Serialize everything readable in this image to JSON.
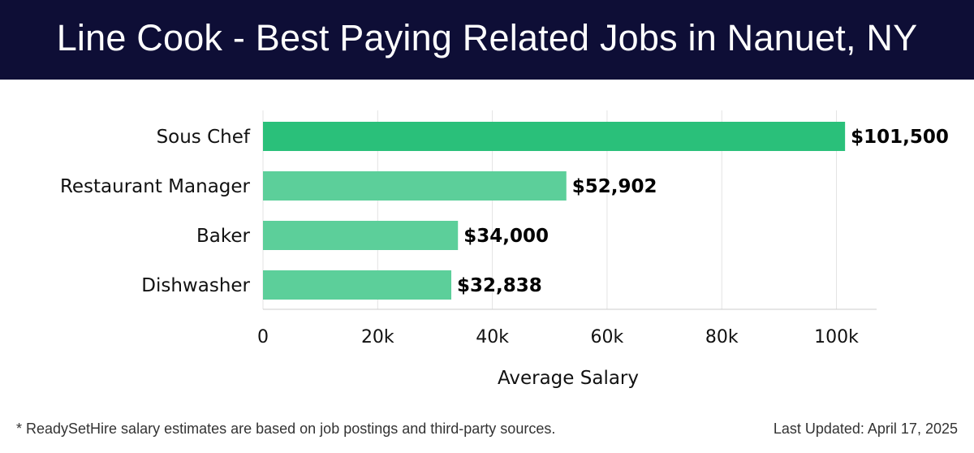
{
  "header": {
    "title": "Line Cook - Best Paying Related Jobs in Nanuet, NY"
  },
  "colors": {
    "header_bg": "#0e0e36",
    "bar_primary": "#2ac07a",
    "bar_secondary": "#5ccf9a",
    "grid": "#e3e3e3"
  },
  "chart_data": {
    "type": "bar",
    "orientation": "horizontal",
    "categories": [
      "Sous Chef",
      "Restaurant Manager",
      "Baker",
      "Dishwasher"
    ],
    "values": [
      101500,
      52902,
      34000,
      32838
    ],
    "value_labels": [
      "$101,500",
      "$52,902",
      "$34,000",
      "$32,838"
    ],
    "xlim": [
      0,
      107000
    ],
    "xticks": [
      0,
      20000,
      40000,
      60000,
      80000,
      100000
    ],
    "xtick_labels": [
      "0",
      "20k",
      "40k",
      "60k",
      "80k",
      "100k"
    ],
    "xlabel": "Average Salary",
    "ylabel": "",
    "grid": true
  },
  "footer": {
    "note": "* ReadySetHire salary estimates are based on job postings and third-party sources.",
    "updated": "Last Updated: April 17, 2025"
  }
}
